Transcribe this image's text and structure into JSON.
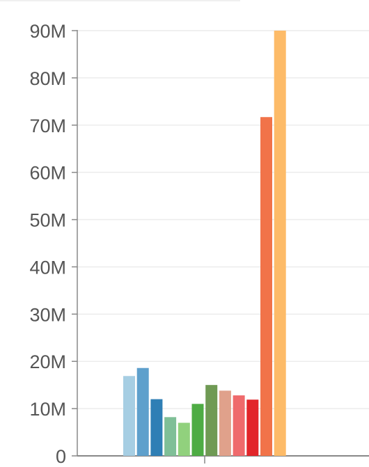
{
  "chart_data": {
    "type": "bar",
    "title": "",
    "xlabel": "",
    "ylabel": "",
    "ylim": [
      0,
      90000000
    ],
    "grid": true,
    "legend": "none",
    "y_ticks": [
      {
        "value": 0,
        "label": "0"
      },
      {
        "value": 10000000,
        "label": "10M"
      },
      {
        "value": 20000000,
        "label": "20M"
      },
      {
        "value": 30000000,
        "label": "30M"
      },
      {
        "value": 40000000,
        "label": "40M"
      },
      {
        "value": 50000000,
        "label": "50M"
      },
      {
        "value": 60000000,
        "label": "60M"
      },
      {
        "value": 70000000,
        "label": "70M"
      },
      {
        "value": 80000000,
        "label": "80M"
      },
      {
        "value": 90000000,
        "label": "90M"
      }
    ],
    "values": [
      16900000,
      18600000,
      12000000,
      8200000,
      7000000,
      11000000,
      15000000,
      13800000,
      12800000,
      11900000,
      71700000,
      90000000
    ],
    "colors": [
      "#a6cee3",
      "#5ea0cc",
      "#2f7fb5",
      "#7fbf97",
      "#91d17d",
      "#4eac44",
      "#6f9a54",
      "#e0a18b",
      "#ef6a6c",
      "#e2252a",
      "#f17349",
      "#fdbb68"
    ]
  },
  "colors": {
    "axis": "#888888",
    "grid": "#ececec",
    "tick_text": "#555555",
    "background": "#ffffff"
  }
}
